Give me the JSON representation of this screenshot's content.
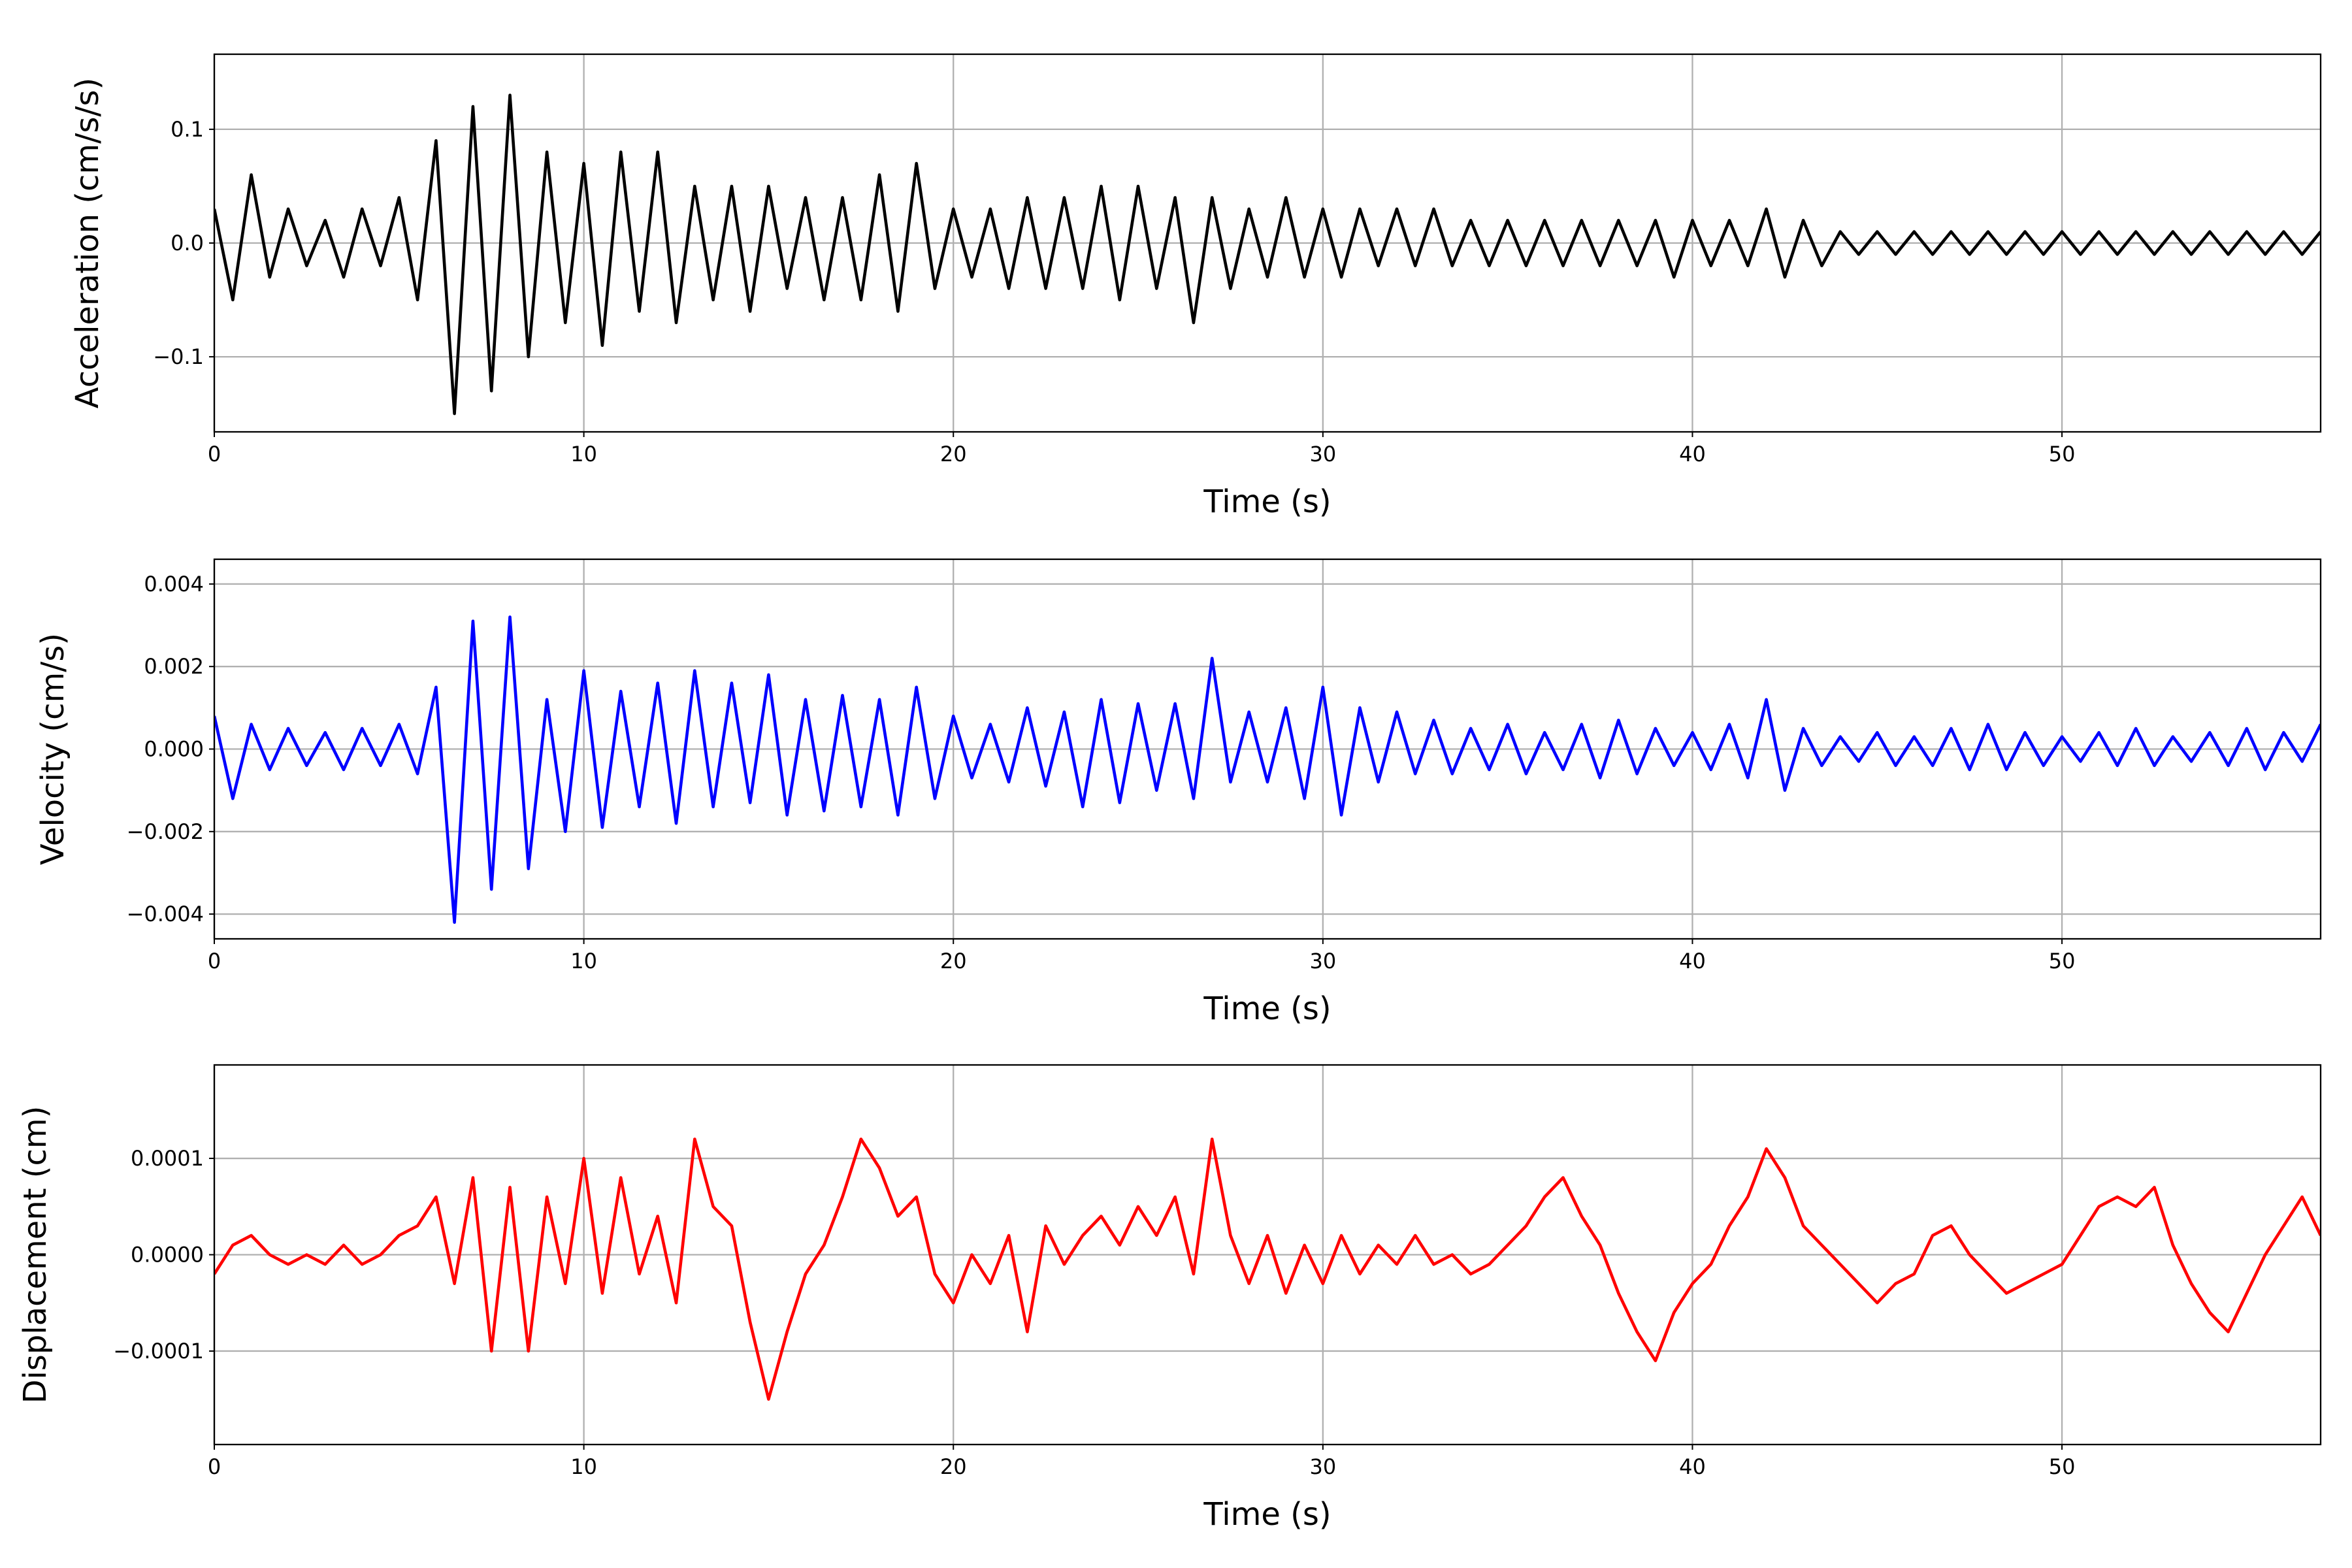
{
  "chart_data": [
    {
      "type": "line",
      "xlabel": "Time (s)",
      "ylabel": "Acceleration (cm/s/s)",
      "color": "#000000",
      "grid": true,
      "xlim": [
        0,
        57
      ],
      "xticks": [
        0,
        10,
        20,
        30,
        40,
        50
      ],
      "ylim": [
        -0.166,
        0.166
      ],
      "yticks": [
        {
          "value": -0.1,
          "label": "−0.1"
        },
        {
          "value": 0,
          "label": "0.0"
        },
        0.1
      ],
      "x": [
        0,
        0.5,
        1,
        1.5,
        2,
        2.5,
        3,
        3.5,
        4,
        4.5,
        5,
        5.5,
        6,
        6.5,
        7,
        7.5,
        8,
        8.5,
        9,
        9.5,
        10,
        10.5,
        11,
        11.5,
        12,
        12.5,
        13,
        13.5,
        14,
        14.5,
        15,
        15.5,
        16,
        16.5,
        17,
        17.5,
        18,
        18.5,
        19,
        19.5,
        20,
        20.5,
        21,
        21.5,
        22,
        22.5,
        23,
        23.5,
        24,
        24.5,
        25,
        25.5,
        26,
        26.5,
        27,
        27.5,
        28,
        28.5,
        29,
        29.5,
        30,
        30.5,
        31,
        31.5,
        32,
        32.5,
        33,
        33.5,
        34,
        34.5,
        35,
        35.5,
        36,
        36.5,
        37,
        37.5,
        38,
        38.5,
        39,
        39.5,
        40,
        40.5,
        41,
        41.5,
        42,
        42.5,
        43,
        43.5,
        44,
        44.5,
        45,
        45.5,
        46,
        46.5,
        47,
        47.5,
        48,
        48.5,
        49,
        49.5,
        50,
        50.5,
        51,
        51.5,
        52,
        52.5,
        53,
        53.5,
        54,
        54.5,
        55,
        55.5,
        56,
        56.5,
        57
      ],
      "values": [
        0.03,
        -0.05,
        0.06,
        -0.03,
        0.03,
        -0.02,
        0.02,
        -0.03,
        0.03,
        -0.02,
        0.04,
        -0.05,
        0.09,
        -0.15,
        0.12,
        -0.13,
        0.13,
        -0.1,
        0.08,
        -0.07,
        0.07,
        -0.09,
        0.08,
        -0.06,
        0.08,
        -0.07,
        0.05,
        -0.05,
        0.05,
        -0.06,
        0.05,
        -0.04,
        0.04,
        -0.05,
        0.04,
        -0.05,
        0.06,
        -0.06,
        0.07,
        -0.04,
        0.03,
        -0.03,
        0.03,
        -0.04,
        0.04,
        -0.04,
        0.04,
        -0.04,
        0.05,
        -0.05,
        0.05,
        -0.04,
        0.04,
        -0.07,
        0.04,
        -0.04,
        0.03,
        -0.03,
        0.04,
        -0.03,
        0.03,
        -0.03,
        0.03,
        -0.02,
        0.03,
        -0.02,
        0.03,
        -0.02,
        0.02,
        -0.02,
        0.02,
        -0.02,
        0.02,
        -0.02,
        0.02,
        -0.02,
        0.02,
        -0.02,
        0.02,
        -0.03,
        0.02,
        -0.02,
        0.02,
        -0.02,
        0.03,
        -0.03,
        0.02,
        -0.02,
        0.01,
        -0.01,
        0.01,
        -0.01,
        0.01,
        -0.01,
        0.01,
        -0.01,
        0.01,
        -0.01,
        0.01,
        -0.01,
        0.01,
        -0.01,
        0.01,
        -0.01,
        0.01,
        -0.01,
        0.01,
        -0.01,
        0.01,
        -0.01,
        0.01,
        -0.01,
        0.01,
        -0.01,
        0.01
      ]
    },
    {
      "type": "line",
      "xlabel": "Time (s)",
      "ylabel": "Velocity (cm/s)",
      "color": "#0000ff",
      "grid": true,
      "xlim": [
        0,
        57
      ],
      "xticks": [
        0,
        10,
        20,
        30,
        40,
        50
      ],
      "ylim": [
        -0.0046,
        0.0046
      ],
      "yticks": [
        {
          "value": -0.004,
          "label": "−0.004"
        },
        {
          "value": -0.002,
          "label": "−0.002"
        },
        {
          "value": 0,
          "label": "0.000"
        },
        0.002,
        0.004
      ],
      "x": [
        0,
        0.5,
        1,
        1.5,
        2,
        2.5,
        3,
        3.5,
        4,
        4.5,
        5,
        5.5,
        6,
        6.5,
        7,
        7.5,
        8,
        8.5,
        9,
        9.5,
        10,
        10.5,
        11,
        11.5,
        12,
        12.5,
        13,
        13.5,
        14,
        14.5,
        15,
        15.5,
        16,
        16.5,
        17,
        17.5,
        18,
        18.5,
        19,
        19.5,
        20,
        20.5,
        21,
        21.5,
        22,
        22.5,
        23,
        23.5,
        24,
        24.5,
        25,
        25.5,
        26,
        26.5,
        27,
        27.5,
        28,
        28.5,
        29,
        29.5,
        30,
        30.5,
        31,
        31.5,
        32,
        32.5,
        33,
        33.5,
        34,
        34.5,
        35,
        35.5,
        36,
        36.5,
        37,
        37.5,
        38,
        38.5,
        39,
        39.5,
        40,
        40.5,
        41,
        41.5,
        42,
        42.5,
        43,
        43.5,
        44,
        44.5,
        45,
        45.5,
        46,
        46.5,
        47,
        47.5,
        48,
        48.5,
        49,
        49.5,
        50,
        50.5,
        51,
        51.5,
        52,
        52.5,
        53,
        53.5,
        54,
        54.5,
        55,
        55.5,
        56,
        56.5,
        57
      ],
      "values": [
        0.0008,
        -0.0012,
        0.0006,
        -0.0005,
        0.0005,
        -0.0004,
        0.0004,
        -0.0005,
        0.0005,
        -0.0004,
        0.0006,
        -0.0006,
        0.0015,
        -0.0042,
        0.0031,
        -0.0034,
        0.0032,
        -0.0029,
        0.0012,
        -0.002,
        0.0019,
        -0.0019,
        0.0014,
        -0.0014,
        0.0016,
        -0.0018,
        0.0019,
        -0.0014,
        0.0016,
        -0.0013,
        0.0018,
        -0.0016,
        0.0012,
        -0.0015,
        0.0013,
        -0.0014,
        0.0012,
        -0.0016,
        0.0015,
        -0.0012,
        0.0008,
        -0.0007,
        0.0006,
        -0.0008,
        0.001,
        -0.0009,
        0.0009,
        -0.0014,
        0.0012,
        -0.0013,
        0.0011,
        -0.001,
        0.0011,
        -0.0012,
        0.0022,
        -0.0008,
        0.0009,
        -0.0008,
        0.001,
        -0.0012,
        0.0015,
        -0.0016,
        0.001,
        -0.0008,
        0.0009,
        -0.0006,
        0.0007,
        -0.0006,
        0.0005,
        -0.0005,
        0.0006,
        -0.0006,
        0.0004,
        -0.0005,
        0.0006,
        -0.0007,
        0.0007,
        -0.0006,
        0.0005,
        -0.0004,
        0.0004,
        -0.0005,
        0.0006,
        -0.0007,
        0.0012,
        -0.001,
        0.0005,
        -0.0004,
        0.0003,
        -0.0003,
        0.0004,
        -0.0004,
        0.0003,
        -0.0004,
        0.0005,
        -0.0005,
        0.0006,
        -0.0005,
        0.0004,
        -0.0004,
        0.0003,
        -0.0003,
        0.0004,
        -0.0004,
        0.0005,
        -0.0004,
        0.0003,
        -0.0003,
        0.0004,
        -0.0004,
        0.0005,
        -0.0005,
        0.0004,
        -0.0003,
        0.0006
      ]
    },
    {
      "type": "line",
      "xlabel": "Time (s)",
      "ylabel": "Displacement (cm)",
      "color": "#ff0000",
      "grid": true,
      "xlim": [
        0,
        57
      ],
      "xticks": [
        0,
        10,
        20,
        30,
        40,
        50
      ],
      "ylim": [
        -0.000197,
        0.000197
      ],
      "yticks": [
        {
          "value": -0.0001,
          "label": "−0.0001"
        },
        {
          "value": 0,
          "label": "0.0000"
        },
        0.0001
      ],
      "x": [
        0,
        0.5,
        1,
        1.5,
        2,
        2.5,
        3,
        3.5,
        4,
        4.5,
        5,
        5.5,
        6,
        6.5,
        7,
        7.5,
        8,
        8.5,
        9,
        9.5,
        10,
        10.5,
        11,
        11.5,
        12,
        12.5,
        13,
        13.5,
        14,
        14.5,
        15,
        15.5,
        16,
        16.5,
        17,
        17.5,
        18,
        18.5,
        19,
        19.5,
        20,
        20.5,
        21,
        21.5,
        22,
        22.5,
        23,
        23.5,
        24,
        24.5,
        25,
        25.5,
        26,
        26.5,
        27,
        27.5,
        28,
        28.5,
        29,
        29.5,
        30,
        30.5,
        31,
        31.5,
        32,
        32.5,
        33,
        33.5,
        34,
        34.5,
        35,
        35.5,
        36,
        36.5,
        37,
        37.5,
        38,
        38.5,
        39,
        39.5,
        40,
        40.5,
        41,
        41.5,
        42,
        42.5,
        43,
        43.5,
        44,
        44.5,
        45,
        45.5,
        46,
        46.5,
        47,
        47.5,
        48,
        48.5,
        49,
        49.5,
        50,
        50.5,
        51,
        51.5,
        52,
        52.5,
        53,
        53.5,
        54,
        54.5,
        55,
        55.5,
        56,
        56.5,
        57
      ],
      "values": [
        -2e-05,
        1e-05,
        2e-05,
        0,
        -1e-05,
        0,
        -1e-05,
        1e-05,
        -1e-05,
        0,
        2e-05,
        3e-05,
        6e-05,
        -3e-05,
        8e-05,
        -0.0001,
        7e-05,
        -0.0001,
        6e-05,
        -3e-05,
        0.0001,
        -4e-05,
        8e-05,
        -2e-05,
        4e-05,
        -5e-05,
        0.00012,
        5e-05,
        3e-05,
        -7e-05,
        -0.00015,
        -8e-05,
        -2e-05,
        1e-05,
        6e-05,
        0.00012,
        9e-05,
        4e-05,
        6e-05,
        -2e-05,
        -5e-05,
        0,
        -3e-05,
        2e-05,
        -8e-05,
        3e-05,
        -1e-05,
        2e-05,
        4e-05,
        1e-05,
        5e-05,
        2e-05,
        6e-05,
        -2e-05,
        0.00012,
        2e-05,
        -3e-05,
        2e-05,
        -4e-05,
        1e-05,
        -3e-05,
        2e-05,
        -2e-05,
        1e-05,
        -1e-05,
        2e-05,
        -1e-05,
        0,
        -2e-05,
        -1e-05,
        1e-05,
        3e-05,
        6e-05,
        8e-05,
        4e-05,
        1e-05,
        -4e-05,
        -8e-05,
        -0.00011,
        -6e-05,
        -3e-05,
        -1e-05,
        3e-05,
        6e-05,
        0.00011,
        8e-05,
        3e-05,
        1e-05,
        -1e-05,
        -3e-05,
        -5e-05,
        -3e-05,
        -2e-05,
        2e-05,
        3e-05,
        0,
        -2e-05,
        -4e-05,
        -3e-05,
        -2e-05,
        -1e-05,
        2e-05,
        5e-05,
        6e-05,
        5e-05,
        7e-05,
        1e-05,
        -3e-05,
        -6e-05,
        -8e-05,
        -4e-05,
        0,
        3e-05,
        6e-05,
        2e-05
      ]
    }
  ]
}
